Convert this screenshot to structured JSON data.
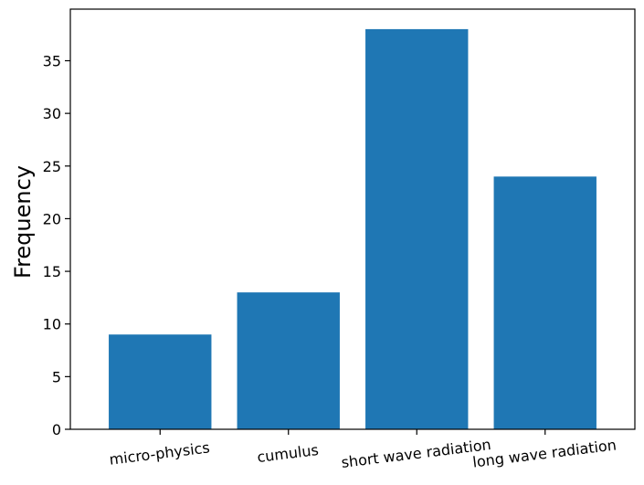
{
  "chart_data": {
    "type": "bar",
    "title": "",
    "xlabel": "",
    "ylabel": "Frequency",
    "categories": [
      "micro-physics",
      "cumulus",
      "short wave radiation",
      "long wave radiation"
    ],
    "values": [
      9,
      13,
      38,
      24
    ],
    "ylim": [
      0,
      39.9
    ],
    "yticks": [
      0,
      5,
      10,
      15,
      20,
      25,
      30,
      35
    ],
    "x_tick_rotation_deg": -7,
    "grid": false,
    "legend": "none",
    "bar_color": "#1f77b4"
  }
}
